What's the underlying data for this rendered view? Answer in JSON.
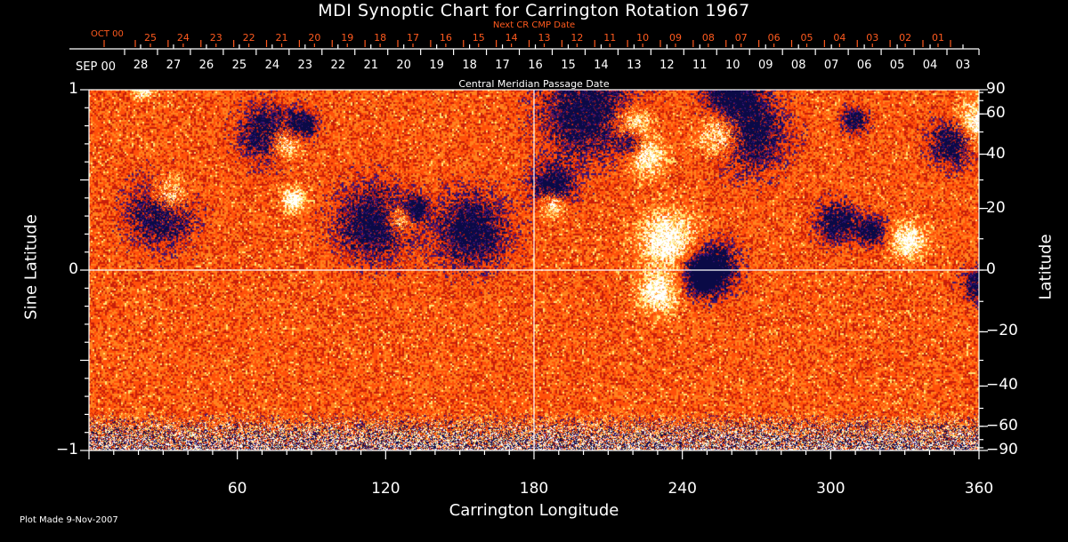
{
  "chart_data": {
    "type": "heatmap",
    "title": "MDI Synoptic Chart for Carrington Rotation 1967",
    "xlabel": "Carrington Longitude",
    "ylabel": "Sine Latitude",
    "ylabel_right": "Latitude",
    "xlim": [
      0,
      360
    ],
    "ylim": [
      -1,
      1
    ],
    "x_ticks": [
      "60",
      "120",
      "180",
      "240",
      "300",
      "360"
    ],
    "y_ticks_left": [
      "1",
      "0",
      "−1"
    ],
    "y_ticks_right": [
      90,
      60,
      40,
      20,
      0,
      -20,
      -40,
      -60,
      -90
    ],
    "top_axis_label": "Central Meridian Passage Date",
    "top_axis_start": "SEP 00",
    "top_axis_dates": [
      "28",
      "27",
      "26",
      "25",
      "24",
      "23",
      "22",
      "21",
      "20",
      "19",
      "18",
      "17",
      "16",
      "15",
      "14",
      "13",
      "12",
      "11",
      "10",
      "09",
      "08",
      "07",
      "06",
      "05",
      "04",
      "03"
    ],
    "next_axis_label": "Next CR CMP Date",
    "next_axis_start": "OCT 00",
    "next_axis_dates": [
      "25",
      "24",
      "23",
      "22",
      "21",
      "20",
      "19",
      "18",
      "17",
      "16",
      "15",
      "14",
      "13",
      "12",
      "11",
      "10",
      "09",
      "08",
      "07",
      "06",
      "05",
      "04",
      "03",
      "02",
      "01"
    ],
    "colors": {
      "background": "#000000",
      "positive_field": "#ffffff",
      "negative_field": "#101060",
      "quiet": "#ff5a10",
      "next_axis": "#ff5a1e"
    },
    "grid": "equator and central meridian lines"
  },
  "footer": {
    "plot_made": "Plot Made  9-Nov-2007"
  }
}
